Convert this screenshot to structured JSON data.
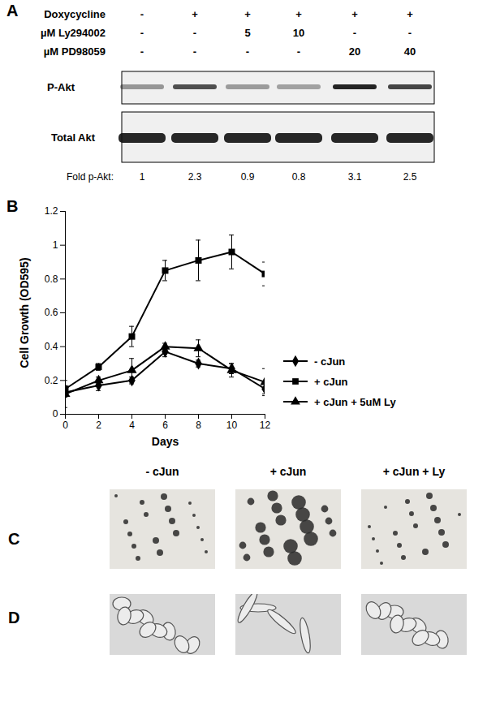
{
  "panel_a": {
    "label": "A",
    "rows": [
      {
        "name": "Doxycycline",
        "values": [
          "-",
          "+",
          "+",
          "+",
          "+",
          "+"
        ]
      },
      {
        "name": "µM Ly294002",
        "values": [
          "-",
          "-",
          "5",
          "10",
          "-",
          "-"
        ]
      },
      {
        "name": "µM PD98059",
        "values": [
          "-",
          "-",
          "-",
          "-",
          "20",
          "40"
        ]
      }
    ],
    "blots": [
      "P-Akt",
      "Total Akt"
    ],
    "fold_label": "Fold p-Akt:",
    "fold_values": [
      1,
      2.3,
      0.9,
      0.8,
      3.1,
      2.5
    ]
  },
  "chart_data": {
    "panel_label": "B",
    "type": "line",
    "x_label": "Days",
    "y_label": "Cell Growth (OD595)",
    "x": [
      0,
      2,
      4,
      6,
      8,
      10,
      12
    ],
    "xlim": [
      0,
      12
    ],
    "xticks": [
      0,
      2,
      4,
      6,
      8,
      10,
      12
    ],
    "ylim": [
      0,
      1.2
    ],
    "yticks": [
      0,
      0.2,
      0.4,
      0.6,
      0.8,
      1,
      1.2
    ],
    "legend": "right",
    "series": [
      {
        "name": "- cJun",
        "color": "#000000",
        "marker": "diamond",
        "values": [
          0.13,
          0.17,
          0.2,
          0.37,
          0.3,
          0.27,
          0.15
        ],
        "errors": [
          0.03,
          0.03,
          0.02,
          0.03,
          0.02,
          0.03,
          0.03
        ]
      },
      {
        "name": "+ cJun",
        "color": "#000000",
        "marker": "square",
        "values": [
          0.15,
          0.28,
          0.46,
          0.85,
          0.91,
          0.96,
          0.83
        ],
        "errors": [
          0.02,
          0.02,
          0.06,
          0.06,
          0.12,
          0.1,
          0.07
        ]
      },
      {
        "name": "+ cJun + 5uM Ly",
        "color": "#000000",
        "marker": "triangle",
        "values": [
          0.12,
          0.2,
          0.26,
          0.4,
          0.39,
          0.26,
          0.19
        ],
        "errors": [
          0.08,
          0.02,
          0.07,
          0.02,
          0.05,
          0.04,
          0.08
        ]
      }
    ]
  },
  "panel_c": {
    "label": "C",
    "images": [
      "- cJun",
      "+ cJun",
      "+ cJun + Ly"
    ]
  },
  "panel_d": {
    "label": "D"
  }
}
